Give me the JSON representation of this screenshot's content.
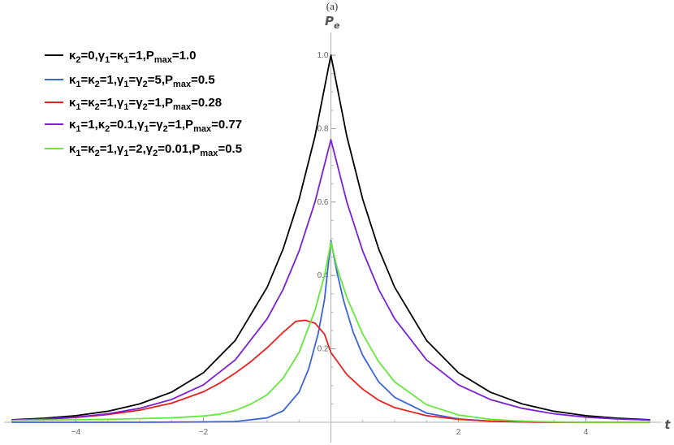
{
  "chart_data": {
    "type": "line",
    "panel_label": "(a)",
    "xlabel": "t",
    "ylabel": "P",
    "ylabel_sub": "e",
    "xlim": [
      -5,
      5
    ],
    "ylim": [
      0,
      1.0
    ],
    "x_ticks": [
      -4,
      -2,
      2,
      4
    ],
    "x_tick_labels": [
      "−4",
      "−2",
      "2",
      "4"
    ],
    "y_ticks": [
      0.2,
      0.4,
      0.6,
      0.8,
      1.0
    ],
    "y_tick_labels": [
      "0.2",
      "0.4",
      "0.6",
      "0.8",
      "1.0"
    ],
    "grid": false,
    "legend_position": "top-left",
    "series": [
      {
        "name": "κ2=0,γ1=κ1=1,Pmax=1.0",
        "legend_parts": [
          [
            "κ",
            ""
          ],
          [
            "2",
            "sub"
          ],
          [
            "=0,",
            ""
          ],
          [
            "γ",
            ""
          ],
          [
            "1",
            "sub"
          ],
          [
            "=",
            ""
          ],
          [
            "κ",
            ""
          ],
          [
            "1",
            "sub"
          ],
          [
            "=1,",
            ""
          ],
          [
            "P",
            ""
          ],
          [
            "max",
            "sub"
          ],
          [
            "=1.0",
            ""
          ]
        ],
        "color": "#000000",
        "x": [
          -5,
          -4.5,
          -4,
          -3.5,
          -3,
          -2.5,
          -2,
          -1.5,
          -1,
          -0.75,
          -0.5,
          -0.25,
          0,
          0.25,
          0.5,
          0.75,
          1,
          1.5,
          2,
          2.5,
          3,
          3.5,
          4,
          4.5,
          5
        ],
        "y": [
          0.007,
          0.011,
          0.018,
          0.03,
          0.05,
          0.082,
          0.135,
          0.223,
          0.368,
          0.472,
          0.607,
          0.779,
          1.0,
          0.779,
          0.607,
          0.472,
          0.368,
          0.223,
          0.135,
          0.082,
          0.05,
          0.03,
          0.018,
          0.011,
          0.007
        ]
      },
      {
        "name": "κ1=κ2=1,γ1=γ2=5,Pmax=0.5",
        "legend_parts": [
          [
            "κ",
            ""
          ],
          [
            "1",
            "sub"
          ],
          [
            "=",
            ""
          ],
          [
            "κ",
            ""
          ],
          [
            "2",
            "sub"
          ],
          [
            "=1,",
            ""
          ],
          [
            "γ",
            ""
          ],
          [
            "1",
            "sub"
          ],
          [
            "=",
            ""
          ],
          [
            "γ",
            ""
          ],
          [
            "2",
            "sub"
          ],
          [
            "=5,",
            ""
          ],
          [
            "P",
            ""
          ],
          [
            "max",
            "sub"
          ],
          [
            "=0.5",
            ""
          ]
        ],
        "color": "#3a64d8",
        "x": [
          -5,
          -4,
          -3,
          -2,
          -1.5,
          -1,
          -0.75,
          -0.5,
          -0.35,
          -0.2,
          -0.1,
          0,
          0.1,
          0.2,
          0.35,
          0.5,
          0.75,
          1,
          1.5,
          2,
          2.5,
          3,
          3.5,
          4,
          4.5,
          5
        ],
        "y": [
          0.0,
          0.0,
          0.0,
          0.001,
          0.002,
          0.012,
          0.031,
          0.082,
          0.145,
          0.241,
          0.335,
          0.495,
          0.405,
          0.331,
          0.245,
          0.182,
          0.11,
          0.068,
          0.025,
          0.009,
          0.003,
          0.001,
          0.0,
          0.0,
          0.0,
          0.0
        ]
      },
      {
        "name": "κ1=κ2=1,γ1=γ2=1,Pmax=0.28",
        "legend_parts": [
          [
            "κ",
            ""
          ],
          [
            "1",
            "sub"
          ],
          [
            "=",
            ""
          ],
          [
            "κ",
            ""
          ],
          [
            "2",
            "sub"
          ],
          [
            "=1,",
            ""
          ],
          [
            "γ",
            ""
          ],
          [
            "1",
            "sub"
          ],
          [
            "=",
            ""
          ],
          [
            "γ",
            ""
          ],
          [
            "2",
            "sub"
          ],
          [
            "=1,",
            ""
          ],
          [
            "P",
            ""
          ],
          [
            "max",
            "sub"
          ],
          [
            "=0.28",
            ""
          ]
        ],
        "color": "#e8211c",
        "x": [
          -5,
          -4.5,
          -4,
          -3.5,
          -3,
          -2.5,
          -2,
          -1.75,
          -1.5,
          -1.25,
          -1,
          -0.75,
          -0.55,
          -0.4,
          -0.25,
          -0.1,
          0,
          0.25,
          0.5,
          0.75,
          1,
          1.5,
          2,
          2.5,
          3,
          3.5,
          4,
          5
        ],
        "y": [
          0.005,
          0.008,
          0.013,
          0.021,
          0.033,
          0.052,
          0.083,
          0.106,
          0.134,
          0.166,
          0.203,
          0.245,
          0.275,
          0.278,
          0.27,
          0.24,
          0.19,
          0.13,
          0.09,
          0.06,
          0.04,
          0.018,
          0.008,
          0.003,
          0.001,
          0.0,
          0.0,
          0.0
        ]
      },
      {
        "name": "κ1=1,κ2=0.1,γ1=γ2=1,Pmax=0.77",
        "legend_parts": [
          [
            "κ",
            ""
          ],
          [
            "1",
            "sub"
          ],
          [
            "=1,",
            ""
          ],
          [
            "κ",
            ""
          ],
          [
            "2",
            "sub"
          ],
          [
            "=0.1,",
            ""
          ],
          [
            "γ",
            ""
          ],
          [
            "1",
            "sub"
          ],
          [
            "=",
            ""
          ],
          [
            "γ",
            ""
          ],
          [
            "2",
            "sub"
          ],
          [
            "=1,",
            ""
          ],
          [
            "P",
            ""
          ],
          [
            "max",
            "sub"
          ],
          [
            "=0.77",
            ""
          ]
        ],
        "color": "#7a1fd6",
        "x": [
          -5,
          -4.5,
          -4,
          -3.5,
          -3,
          -2.5,
          -2,
          -1.5,
          -1,
          -0.75,
          -0.5,
          -0.25,
          0,
          0.25,
          0.5,
          0.75,
          1,
          1.5,
          2,
          2.5,
          3,
          3.5,
          4,
          4.5,
          5
        ],
        "y": [
          0.006,
          0.009,
          0.014,
          0.023,
          0.038,
          0.062,
          0.102,
          0.17,
          0.282,
          0.362,
          0.466,
          0.6,
          0.77,
          0.6,
          0.466,
          0.362,
          0.282,
          0.17,
          0.102,
          0.062,
          0.038,
          0.023,
          0.014,
          0.009,
          0.006
        ]
      },
      {
        "name": "κ1=κ2=1,γ1=2,γ2=0.01,Pmax=0.5",
        "legend_parts": [
          [
            "κ",
            ""
          ],
          [
            "1",
            "sub"
          ],
          [
            "=",
            ""
          ],
          [
            "κ",
            ""
          ],
          [
            "2",
            "sub"
          ],
          [
            "=1,",
            ""
          ],
          [
            "γ",
            ""
          ],
          [
            "1",
            "sub"
          ],
          [
            "=2,",
            ""
          ],
          [
            "γ",
            ""
          ],
          [
            "2",
            "sub"
          ],
          [
            "=0.01,",
            ""
          ],
          [
            "P",
            ""
          ],
          [
            "max",
            "sub"
          ],
          [
            "=0.5",
            ""
          ]
        ],
        "color": "#66e83a",
        "x": [
          -5,
          -4.5,
          -4,
          -3.5,
          -3,
          -2.5,
          -2,
          -1.75,
          -1.5,
          -1.25,
          -1,
          -0.75,
          -0.5,
          -0.25,
          -0.1,
          0,
          0.1,
          0.25,
          0.5,
          0.75,
          1,
          1.5,
          2,
          2.5,
          3,
          3.5,
          4,
          5
        ],
        "y": [
          0.005,
          0.006,
          0.007,
          0.008,
          0.01,
          0.012,
          0.017,
          0.022,
          0.032,
          0.05,
          0.075,
          0.12,
          0.19,
          0.305,
          0.4,
          0.49,
          0.42,
          0.34,
          0.24,
          0.165,
          0.11,
          0.048,
          0.02,
          0.008,
          0.003,
          0.001,
          0.0,
          0.0
        ]
      }
    ]
  }
}
